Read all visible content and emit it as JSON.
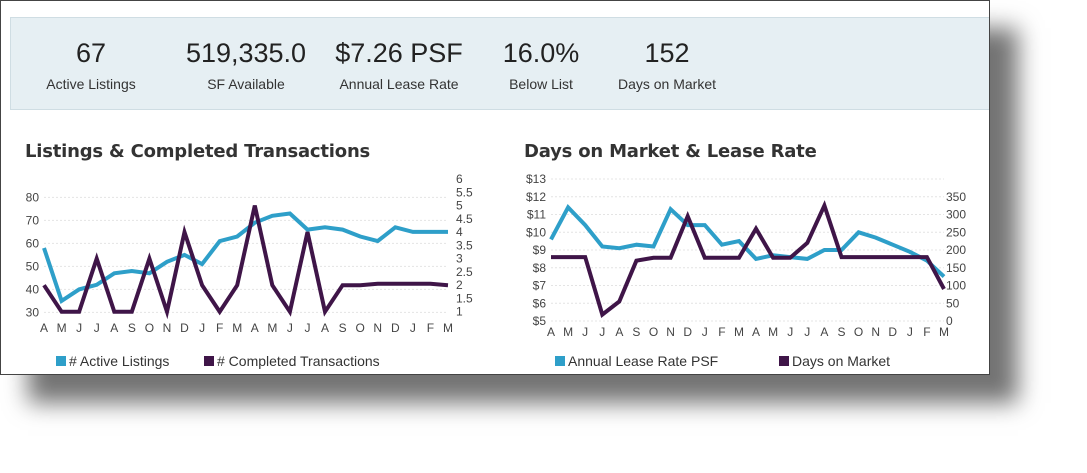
{
  "stats": [
    {
      "value": "67",
      "label": "Active Listings"
    },
    {
      "value": "519,335.0",
      "label": "SF Available"
    },
    {
      "value": "$7.26 PSF",
      "label": "Annual Lease Rate"
    },
    {
      "value": "16.0%",
      "label": "Below List"
    },
    {
      "value": "152",
      "label": "Days on Market"
    }
  ],
  "colors": {
    "series_blue": "#2e9fc9",
    "series_purple": "#3f1548",
    "grid": "#e4e4e4"
  },
  "chart_data": [
    {
      "type": "line",
      "title": "Listings & Completed Transactions",
      "categories": [
        "A",
        "M",
        "J",
        "J",
        "A",
        "S",
        "O",
        "N",
        "D",
        "J",
        "F",
        "M",
        "A",
        "M",
        "J",
        "J",
        "A",
        "S",
        "O",
        "N",
        "D",
        "J",
        "F",
        "M"
      ],
      "left_axis": {
        "ticks": [
          "30",
          "40",
          "50",
          "60",
          "70",
          "80"
        ],
        "ylim": [
          28,
          88
        ]
      },
      "right_axis": {
        "ticks": [
          "1",
          "1.5",
          "2",
          "2.5",
          "3",
          "3.5",
          "4",
          "4.5",
          "5",
          "5.5",
          "6"
        ],
        "ylim": [
          0.8,
          6
        ]
      },
      "series": [
        {
          "name": "# Active Listings",
          "axis": "left",
          "color": "#2e9fc9",
          "values": [
            58,
            35,
            40,
            42,
            47,
            48,
            47,
            52,
            55,
            51,
            61,
            63,
            69,
            72,
            73,
            66,
            67,
            66,
            63,
            61,
            67,
            65,
            65,
            65
          ]
        },
        {
          "name": "# Completed Transactions",
          "axis": "right",
          "color": "#3f1548",
          "values": [
            2,
            1,
            1,
            3,
            1,
            1,
            3,
            1,
            4,
            2,
            1,
            2,
            5,
            2,
            1,
            4,
            1,
            2,
            2,
            2.05,
            2.05,
            2.05,
            2.05,
            2
          ]
        }
      ],
      "legend": "bottom"
    },
    {
      "type": "line",
      "title": "Days on Market & Lease Rate",
      "categories": [
        "A",
        "M",
        "J",
        "J",
        "A",
        "S",
        "O",
        "N",
        "D",
        "J",
        "F",
        "M",
        "A",
        "M",
        "J",
        "J",
        "A",
        "S",
        "O",
        "N",
        "D",
        "J",
        "F",
        "M"
      ],
      "left_axis": {
        "ticks": [
          "$5",
          "$6",
          "$7",
          "$8",
          "$9",
          "$10",
          "$11",
          "$12",
          "$13"
        ],
        "ylim": [
          5,
          13
        ]
      },
      "right_axis": {
        "ticks": [
          "0",
          "50",
          "100",
          "150",
          "200",
          "250",
          "300",
          "350"
        ],
        "ylim": [
          0,
          400
        ]
      },
      "series": [
        {
          "name": "Annual Lease Rate PSF",
          "axis": "left",
          "color": "#2e9fc9",
          "values": [
            9.6,
            11.4,
            10.4,
            9.2,
            9.1,
            9.3,
            9.2,
            11.3,
            10.4,
            10.4,
            9.3,
            9.5,
            8.5,
            8.7,
            8.6,
            8.5,
            9.0,
            9.0,
            10.0,
            9.7,
            9.3,
            8.9,
            8.4,
            7.5
          ]
        },
        {
          "name": "Days on Market",
          "axis": "right",
          "color": "#3f1548",
          "values": [
            180,
            180,
            180,
            18,
            55,
            170,
            178,
            178,
            295,
            178,
            178,
            178,
            260,
            178,
            178,
            220,
            325,
            180,
            180,
            180,
            180,
            180,
            180,
            90
          ]
        }
      ],
      "legend": "bottom"
    }
  ]
}
